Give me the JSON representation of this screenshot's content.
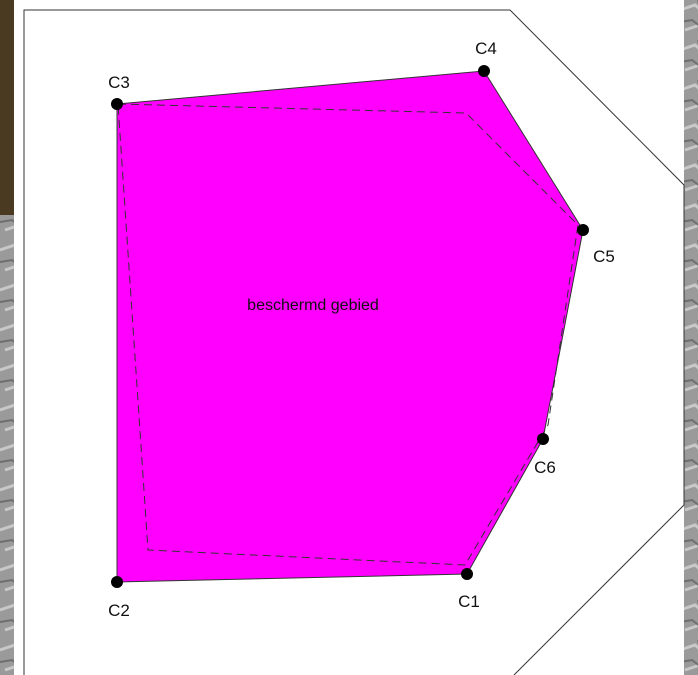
{
  "area_label": "beschermd gebied",
  "nodes": [
    {
      "label": "C1"
    },
    {
      "label": "C2"
    },
    {
      "label": "C3"
    },
    {
      "label": "C4"
    },
    {
      "label": "C5"
    },
    {
      "label": "C6"
    }
  ]
}
